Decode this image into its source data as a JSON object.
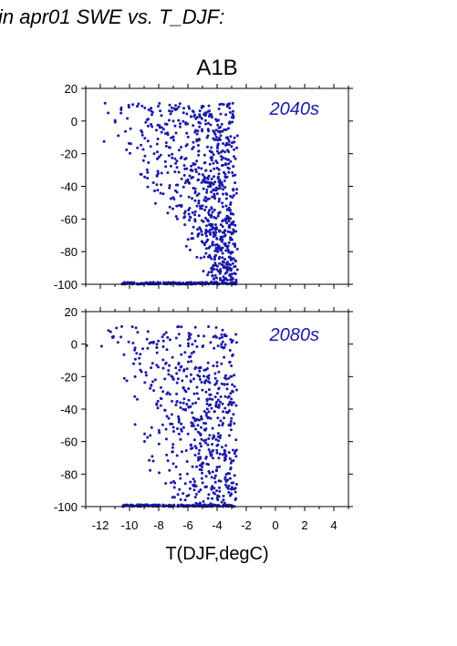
{
  "header": "in apr01 SWE vs. T_DJF:",
  "chart_title": "A1B",
  "colors": {
    "points": "#1a1aaa",
    "annotation": "#1a1aaa"
  },
  "chart_data": [
    {
      "type": "scatter",
      "annotation": "2040s",
      "xlim": [
        -13,
        5
      ],
      "ylim": [
        -100,
        20
      ],
      "yticks": [
        "20",
        "0",
        "-20",
        "-40",
        "-60",
        "-80",
        "-100"
      ],
      "xticks": [
        "-12",
        "-10",
        "-8",
        "-6",
        "-4",
        "-2",
        "0",
        "2",
        "4"
      ],
      "show_x_tick_labels": false,
      "grid": false,
      "generated": {
        "count": 950,
        "seed": 11,
        "cool_edge_start": -12.5,
        "cool_edge_slope": 0.08,
        "warm_edge": -2.8,
        "floor_fraction": 0.17,
        "floor_xmin": -10.5
      }
    },
    {
      "type": "scatter",
      "annotation": "2080s",
      "xlim": [
        -13,
        5
      ],
      "ylim": [
        -100,
        20
      ],
      "yticks": [
        "20",
        "0",
        "-20",
        "-40",
        "-60",
        "-80",
        "-100"
      ],
      "xticks": [
        "-12",
        "-10",
        "-8",
        "-6",
        "-4",
        "-2",
        "0",
        "2",
        "4"
      ],
      "show_x_tick_labels": true,
      "xlabel": "T(DJF,degC)",
      "grid": false,
      "generated": {
        "count": 750,
        "seed": 29,
        "cool_edge_start": -12.8,
        "cool_edge_slope": 0.055,
        "warm_edge": -2.8,
        "floor_fraction": 0.22,
        "floor_xmin": -10.5
      }
    }
  ]
}
